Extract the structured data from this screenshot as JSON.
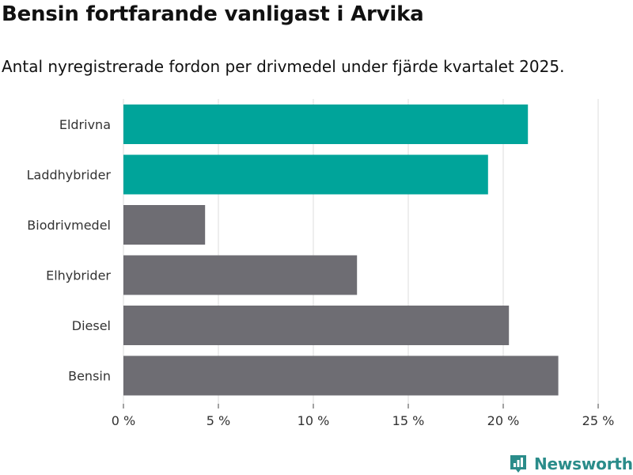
{
  "title": "Bensin fortfarande vanligast i Arvika",
  "subtitle": "Antal nyregistrerade fordon per drivmedel under fjärde kvartalet 2025.",
  "brand": {
    "name": "Newsworthy",
    "color": "#2a9d8f",
    "icon": "newsworthy-logo-icon"
  },
  "colors": {
    "highlight": "#00a49a",
    "default": "#6e6d73",
    "grid": "#dddddd"
  },
  "chart_data": {
    "type": "bar",
    "orientation": "horizontal",
    "categories": [
      "Eldrivna",
      "Laddhybrider",
      "Biodrivmedel",
      "Elhybrider",
      "Diesel",
      "Bensin"
    ],
    "values": [
      21.3,
      19.2,
      4.3,
      12.3,
      20.3,
      22.9
    ],
    "highlighted": [
      true,
      true,
      false,
      false,
      false,
      false
    ],
    "xlim": [
      0,
      25
    ],
    "xticks": [
      0,
      5,
      10,
      15,
      20,
      25
    ],
    "xtick_labels": [
      "0 %",
      "5 %",
      "10 %",
      "15 %",
      "20 %",
      "25 %"
    ],
    "grid": true,
    "xlabel": "",
    "ylabel": ""
  }
}
